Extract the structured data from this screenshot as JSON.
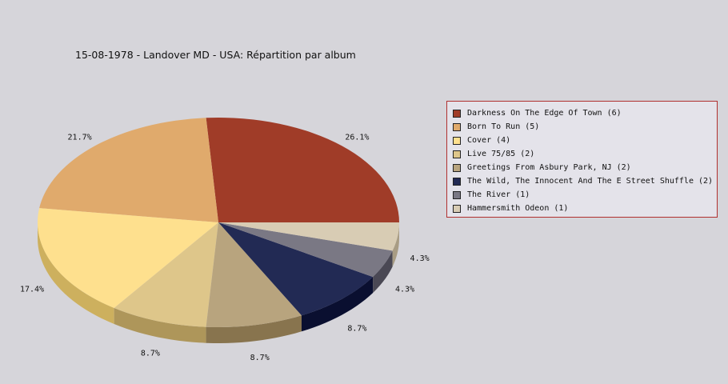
{
  "chart_data": {
    "type": "pie",
    "title": "15-08-1978 - Landover MD - USA:  Répartition par album",
    "labels": [
      "Darkness On The Edge Of Town (6)",
      "Born To Run (5)",
      "Cover (4)",
      "Live 75/85 (2)",
      "Greetings From Asbury Park, NJ (2)",
      "The Wild, The Innocent And The E Street Shuffle (2)",
      "The River (1)",
      "Hammersmith Odeon  (1)"
    ],
    "values": [
      6,
      5,
      4,
      2,
      2,
      2,
      1,
      1
    ],
    "percent_labels": [
      "26.1%",
      "21.7%",
      "17.4%",
      "8.7%",
      "8.7%",
      "8.7%",
      "4.3%",
      "4.3%"
    ],
    "colors": [
      "#a03c28",
      "#e0aa6c",
      "#fee08e",
      "#dec68a",
      "#b8a47e",
      "#222a54",
      "#7a7884",
      "#d8ccb4"
    ],
    "side_colors": [
      "#741004",
      "#ae7a3c",
      "#cdb05e",
      "#ae965a",
      "#88744e",
      "#0a0f30",
      "#4a4854",
      "#a89c84"
    ],
    "legend_position": "right"
  }
}
